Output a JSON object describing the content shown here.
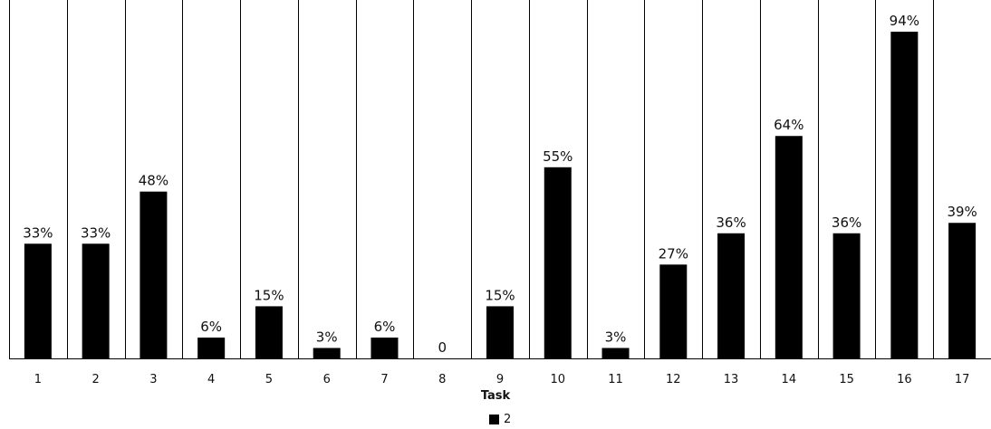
{
  "chart_data": {
    "type": "bar",
    "categories": [
      "1",
      "2",
      "3",
      "4",
      "5",
      "6",
      "7",
      "8",
      "9",
      "10",
      "11",
      "12",
      "13",
      "14",
      "15",
      "16",
      "17"
    ],
    "series": [
      {
        "name": "2",
        "values": [
          33,
          33,
          48,
          6,
          15,
          3,
          6,
          0,
          15,
          55,
          3,
          27,
          36,
          64,
          36,
          94,
          39
        ],
        "labels": [
          "33%",
          "33%",
          "48%",
          "6%",
          "15%",
          "3%",
          "6%",
          "0",
          "15%",
          "55%",
          "3%",
          "27%",
          "36%",
          "64%",
          "36%",
          "94%",
          "39%"
        ]
      }
    ],
    "title": "",
    "xlabel": "Task",
    "ylabel": "",
    "ylim": [
      0,
      100
    ],
    "grid": "vertical separators between categories",
    "legend_position": "bottom-center",
    "colors": {
      "bar": "#000000",
      "separator": "#000000",
      "axis": "#000000"
    }
  }
}
